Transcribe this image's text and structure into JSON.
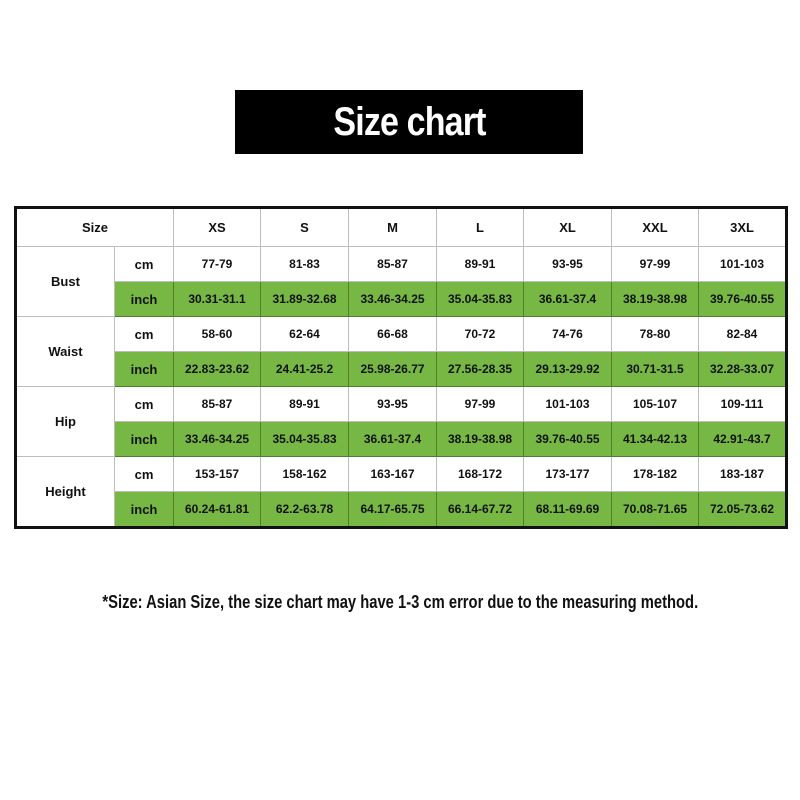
{
  "title": "Size chart",
  "accent_color": "#76b843",
  "table": {
    "corner": "Size",
    "sizes": [
      "XS",
      "S",
      "M",
      "L",
      "XL",
      "XXL",
      "3XL"
    ],
    "measures": [
      {
        "label": "Bust",
        "cm_label": "cm",
        "inch_label": "inch",
        "cm": [
          "77-79",
          "81-83",
          "85-87",
          "89-91",
          "93-95",
          "97-99",
          "101-103"
        ],
        "inch": [
          "30.31-31.1",
          "31.89-32.68",
          "33.46-34.25",
          "35.04-35.83",
          "36.61-37.4",
          "38.19-38.98",
          "39.76-40.55"
        ]
      },
      {
        "label": "Waist",
        "cm_label": "cm",
        "inch_label": "inch",
        "cm": [
          "58-60",
          "62-64",
          "66-68",
          "70-72",
          "74-76",
          "78-80",
          "82-84"
        ],
        "inch": [
          "22.83-23.62",
          "24.41-25.2",
          "25.98-26.77",
          "27.56-28.35",
          "29.13-29.92",
          "30.71-31.5",
          "32.28-33.07"
        ]
      },
      {
        "label": "Hip",
        "cm_label": "cm",
        "inch_label": "inch",
        "cm": [
          "85-87",
          "89-91",
          "93-95",
          "97-99",
          "101-103",
          "105-107",
          "109-111"
        ],
        "inch": [
          "33.46-34.25",
          "35.04-35.83",
          "36.61-37.4",
          "38.19-38.98",
          "39.76-40.55",
          "41.34-42.13",
          "42.91-43.7"
        ]
      },
      {
        "label": "Height",
        "cm_label": "cm",
        "inch_label": "inch",
        "cm": [
          "153-157",
          "158-162",
          "163-167",
          "168-172",
          "173-177",
          "178-182",
          "183-187"
        ],
        "inch": [
          "60.24-61.81",
          "62.2-63.78",
          "64.17-65.75",
          "66.14-67.72",
          "68.11-69.69",
          "70.08-71.65",
          "72.05-73.62"
        ]
      }
    ]
  },
  "note": "*Size: Asian Size, the size chart may have 1-3 cm error due to the measuring method."
}
